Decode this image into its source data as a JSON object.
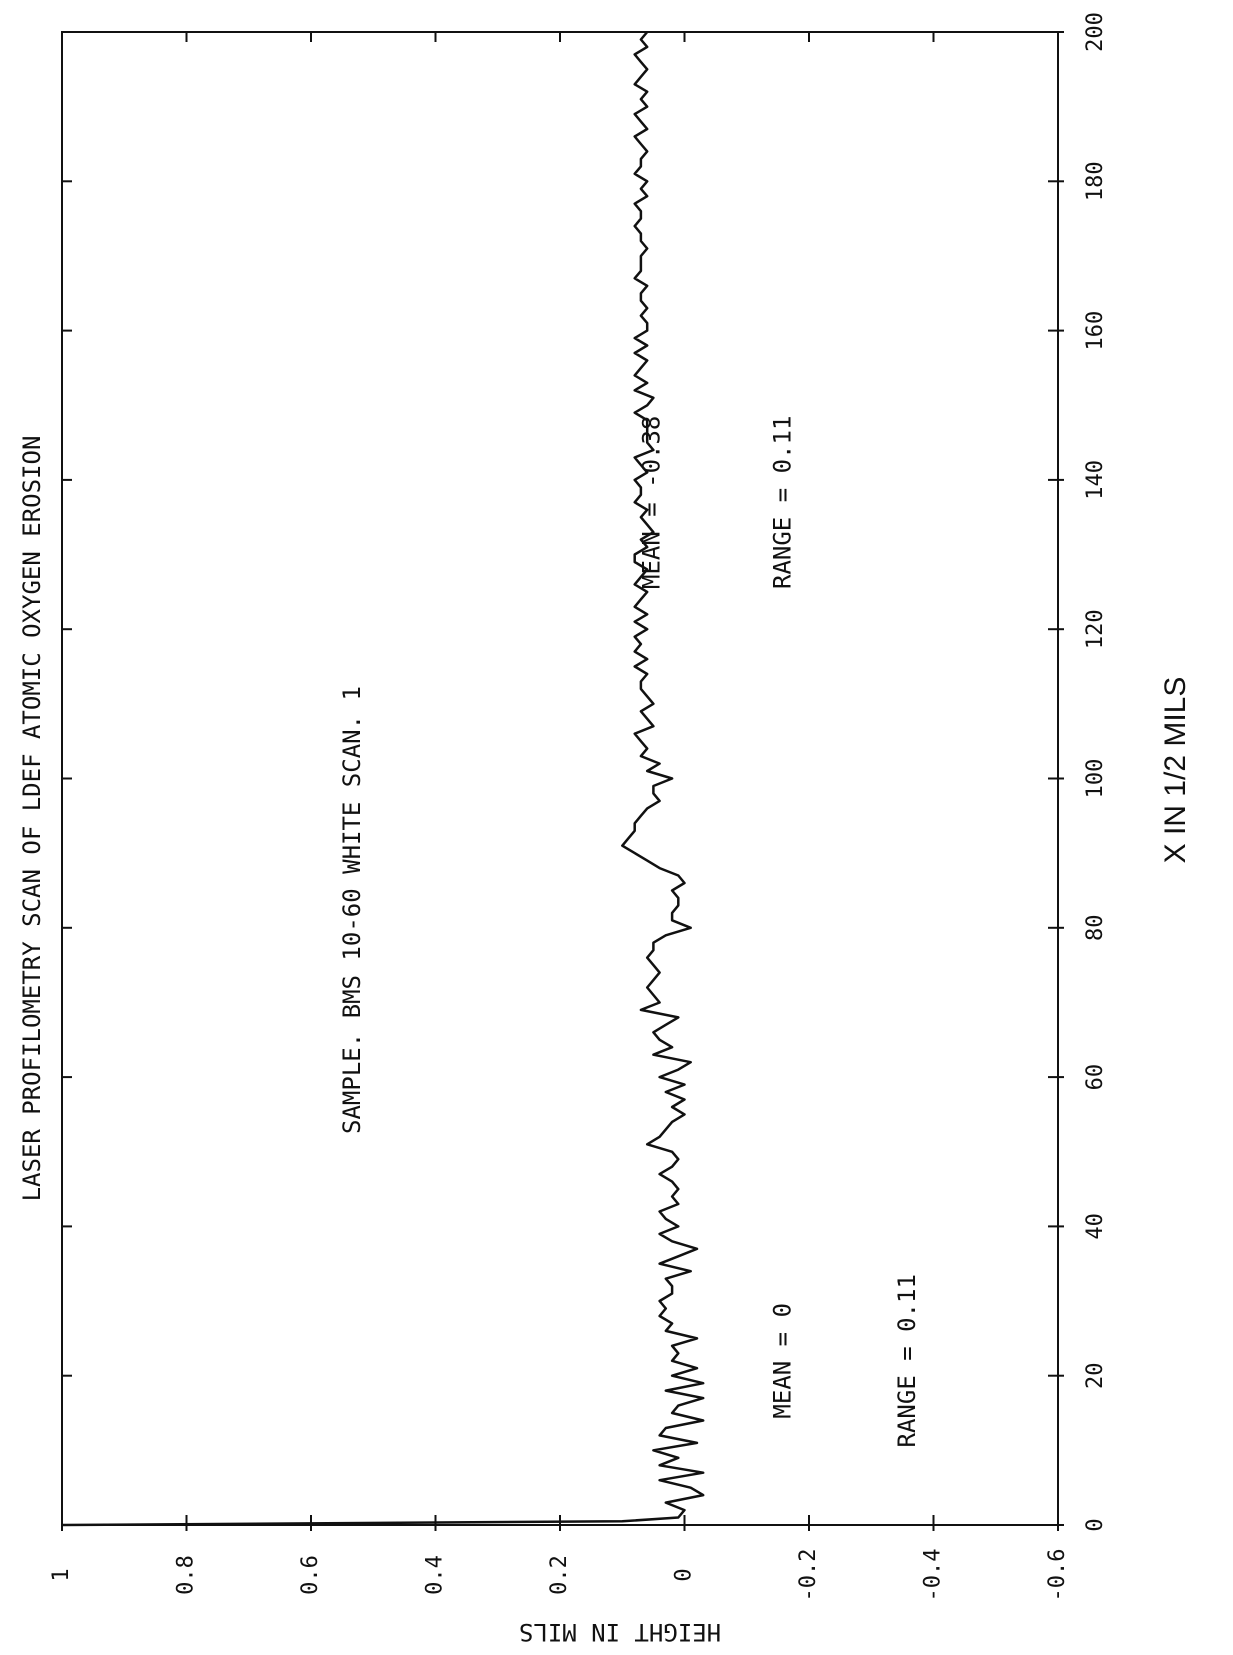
{
  "chart_data": {
    "type": "line",
    "title": "LASER PROFILOMETRY SCAN OF LDEF ATOMIC OXYGEN EROSION",
    "subtitle": "SAMPLE. BMS 10-60 WHITE    SCAN. 1",
    "xlabel": "X IN 1/2 MILS",
    "ylabel": "HEIGHT IN MILS",
    "xlim": [
      0,
      200
    ],
    "ylim": [
      -0.6,
      1
    ],
    "x_ticks": [
      0,
      20,
      40,
      60,
      80,
      100,
      120,
      140,
      160,
      180,
      200
    ],
    "x_tick_labels": [
      "0",
      "20",
      "40",
      "60",
      "80",
      "100",
      "120",
      "140",
      "160",
      "180",
      "200"
    ],
    "y_ticks": [
      1,
      0.8,
      0.6,
      0.4,
      0.2,
      0,
      -0.2,
      -0.4,
      -0.6
    ],
    "y_tick_labels": [
      "1",
      "0.8",
      "0.6",
      "0.4",
      "0.2",
      "0",
      "-0.2",
      "-0.4",
      "-0.6"
    ],
    "grid": false,
    "annotations": [
      {
        "text": "MEAN = 0",
        "x": 22,
        "y": -0.17
      },
      {
        "text": "RANGE = 0.11",
        "x": 22,
        "y": -0.37
      },
      {
        "text": "MEAN = -0.38",
        "x": 137,
        "y": 0.04
      },
      {
        "text": "RANGE = 0.11",
        "x": 137,
        "y": -0.17
      }
    ],
    "series": [
      {
        "x": [
          0,
          0.5,
          1,
          2,
          3,
          4,
          5,
          6,
          7,
          8,
          9,
          10,
          11,
          12,
          13,
          14,
          15,
          16,
          17,
          18,
          19,
          20,
          21,
          22,
          23,
          24,
          25,
          26,
          27,
          28,
          29,
          30,
          31,
          32,
          33,
          34,
          35,
          36,
          37,
          38,
          39,
          40,
          41,
          42,
          43,
          44,
          45,
          46,
          47,
          48,
          49,
          50,
          51,
          52,
          53,
          54,
          55,
          56,
          57,
          58,
          59,
          60,
          61,
          62,
          63,
          64,
          65,
          66,
          67,
          68,
          69,
          70,
          71,
          72,
          73,
          74,
          75,
          76,
          77,
          78,
          79,
          80,
          81,
          82,
          83,
          84,
          85,
          86,
          87,
          88,
          89,
          90,
          91,
          92,
          93,
          94,
          95,
          96,
          97,
          98,
          99,
          100,
          101,
          102,
          103,
          104,
          105,
          106,
          107,
          108,
          109,
          110,
          111,
          112,
          113,
          114,
          115,
          116,
          117,
          118,
          119,
          120,
          121,
          122,
          123,
          124,
          125,
          126,
          127,
          128,
          129,
          130,
          131,
          132,
          133,
          134,
          135,
          136,
          137,
          138,
          139,
          140,
          141,
          142,
          143,
          144,
          145,
          146,
          147,
          148,
          149,
          150,
          151,
          152,
          153,
          154,
          155,
          156,
          157,
          158,
          159,
          160,
          161,
          162,
          163,
          164,
          165,
          166,
          167,
          168,
          169,
          170,
          171,
          172,
          173,
          174,
          175,
          176,
          177,
          178,
          179,
          180,
          181,
          182,
          183,
          184,
          185,
          186,
          187,
          188,
          189,
          190,
          191,
          192,
          193,
          194,
          195,
          196,
          197,
          198,
          199,
          200
        ],
        "y": [
          1,
          0.1,
          0.01,
          0,
          0.03,
          -0.03,
          -0.01,
          0.04,
          -0.03,
          0.04,
          0.01,
          0.05,
          -0.02,
          0.04,
          0.03,
          -0.03,
          0.02,
          0.01,
          -0.03,
          0.03,
          -0.03,
          0.02,
          -0.02,
          0.02,
          0.01,
          0.02,
          -0.02,
          0.03,
          0.02,
          0.04,
          0.03,
          0.04,
          0.02,
          0.02,
          0.03,
          -0.01,
          0.04,
          0.01,
          -0.02,
          0.02,
          0.04,
          0.01,
          0.03,
          0.04,
          0.01,
          0.02,
          0.01,
          0.02,
          0.04,
          0.02,
          0.01,
          0.02,
          0.06,
          0.04,
          0.03,
          0.02,
          0,
          0.02,
          0,
          0.03,
          0,
          0.04,
          0.01,
          -0.01,
          0.05,
          0.02,
          0.04,
          0.05,
          0.03,
          0.01,
          0.07,
          0.04,
          0.05,
          0.06,
          0.05,
          0.04,
          0.05,
          0.06,
          0.05,
          0.05,
          0.03,
          -0.01,
          0.02,
          0.02,
          0.01,
          0.01,
          0.02,
          0,
          0.01,
          0.04,
          0.06,
          0.08,
          0.1,
          0.09,
          0.08,
          0.08,
          0.07,
          0.06,
          0.04,
          0.05,
          0.05,
          0.02,
          0.06,
          0.04,
          0.07,
          0.06,
          0.07,
          0.08,
          0.05,
          0.06,
          0.07,
          0.05,
          0.06,
          0.07,
          0.07,
          0.06,
          0.08,
          0.06,
          0.08,
          0.07,
          0.08,
          0.06,
          0.08,
          0.06,
          0.08,
          0.07,
          0.06,
          0.08,
          0.07,
          0.06,
          0.08,
          0.08,
          0.06,
          0.07,
          0.05,
          0.06,
          0.07,
          0.06,
          0.08,
          0.07,
          0.07,
          0.08,
          0.06,
          0.07,
          0.08,
          0.05,
          0.06,
          0.06,
          0.06,
          0.06,
          0.08,
          0.06,
          0.05,
          0.08,
          0.06,
          0.08,
          0.07,
          0.06,
          0.08,
          0.06,
          0.08,
          0.06,
          0.06,
          0.07,
          0.06,
          0.07,
          0.07,
          0.06,
          0.08,
          0.07,
          0.07,
          0.07,
          0.06,
          0.07,
          0.07,
          0.08,
          0.07,
          0.07,
          0.08,
          0.06,
          0.07,
          0.06,
          0.08,
          0.07,
          0.07,
          0.06,
          0.07,
          0.08,
          0.06,
          0.07,
          0.08,
          0.06,
          0.07,
          0.06,
          0.08,
          0.07,
          0.06,
          0.07,
          0.08,
          0.06,
          0.07,
          0.06
        ]
      }
    ],
    "note": ""
  }
}
